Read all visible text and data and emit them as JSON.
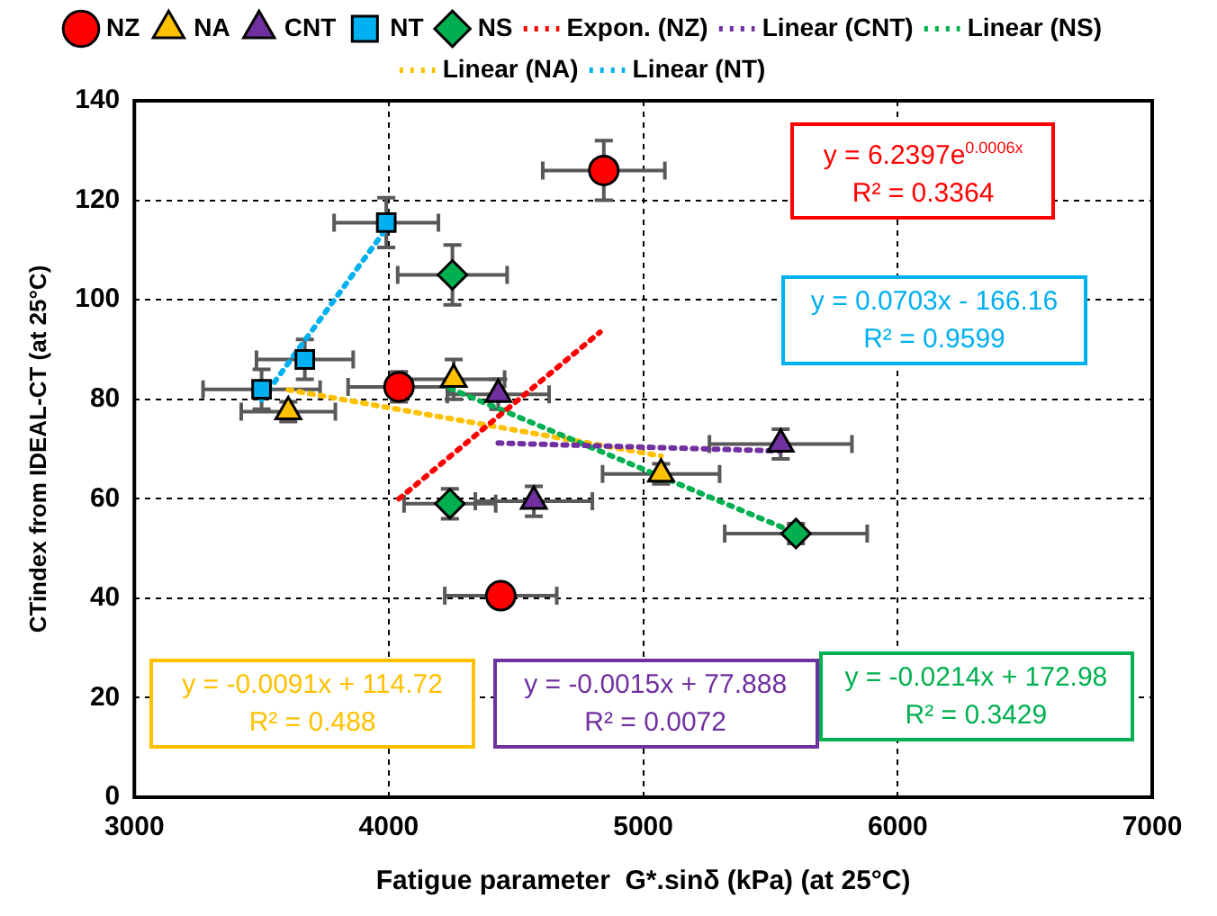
{
  "chart_data": {
    "type": "scatter",
    "xlabel": "Fatigue parameter  G*.sinδ (kPa) (at 25°C)",
    "ylabel": "CTindex from IDEAL-CT (at 25°C)",
    "xlim": [
      3000,
      7000
    ],
    "xticks": [
      3000,
      4000,
      5000,
      6000,
      7000
    ],
    "ylim": [
      0,
      140
    ],
    "yticks": [
      0,
      20,
      40,
      60,
      80,
      100,
      120,
      140
    ],
    "grid": true,
    "legend": "top",
    "series": [
      {
        "name": "NZ",
        "color": "#ff0000",
        "marker": "circle",
        "x": [
          4845,
          4040,
          4440
        ],
        "values": [
          126,
          82.5,
          40.5
        ],
        "errors": [
          6,
          3,
          null
        ],
        "xerrors": [
          240,
          200,
          220
        ]
      },
      {
        "name": "NA",
        "color": "#ffc000",
        "marker": "triangle",
        "x": [
          3605,
          4255,
          5070
        ],
        "values": [
          77.5,
          84,
          65
        ],
        "errors": [
          2,
          4,
          2
        ],
        "xerrors": [
          185,
          200,
          230
        ]
      },
      {
        "name": "CNT",
        "color": "#7030a0",
        "marker": "triangle",
        "x": [
          4430,
          4570,
          5540
        ],
        "values": [
          81,
          59.5,
          71
        ],
        "errors": [
          3,
          3,
          3
        ],
        "xerrors": [
          200,
          230,
          280
        ]
      },
      {
        "name": "NT",
        "color": "#00b0f0",
        "marker": "square",
        "x": [
          3500,
          3670,
          3990
        ],
        "values": [
          82,
          88,
          115.5
        ],
        "errors": [
          4,
          4,
          5
        ],
        "xerrors": [
          230,
          190,
          205
        ]
      },
      {
        "name": "NS",
        "color": "#00b050",
        "marker": "diamond",
        "x": [
          4250,
          4240,
          5600
        ],
        "values": [
          105,
          59,
          53
        ],
        "errors": [
          6,
          3,
          2
        ],
        "xerrors": [
          215,
          180,
          280
        ]
      },
      {
        "name": "Expon. (NZ)",
        "type": "line",
        "color": "#ff0000",
        "line_style": "dotted",
        "x": [
          4040,
          4830
        ],
        "values": [
          60,
          93.5
        ]
      },
      {
        "name": "Linear (CNT)",
        "type": "line",
        "color": "#7030a0",
        "line_style": "dotted",
        "x": [
          4430,
          5540
        ],
        "values": [
          71.2,
          69.6
        ]
      },
      {
        "name": "Linear (NS)",
        "type": "line",
        "color": "#00b050",
        "line_style": "dotted",
        "x": [
          4240,
          5600
        ],
        "values": [
          82.2,
          53.1
        ]
      },
      {
        "name": "Linear (NA)",
        "type": "line",
        "color": "#ffc000",
        "line_style": "dotted",
        "x": [
          3605,
          5070
        ],
        "values": [
          81.9,
          68.6
        ]
      },
      {
        "name": "Linear (NT)",
        "type": "line",
        "color": "#00b0f0",
        "line_style": "dotted",
        "x": [
          3500,
          3990
        ],
        "values": [
          79.9,
          114.3
        ]
      }
    ],
    "annotations": [
      "y = 6.2397e$^{0.0006x}$\nR² = 0.3364",
      "y = -0.0015x + 77.888\nR² = 0.0072",
      "y = -0.0214x + 172.98\nR² = 0.3429",
      "y = -0.0091x + 114.72\nR² = 0.488",
      "y = 0.0703x  - 166.16\nR² = 0.9599"
    ]
  }
}
